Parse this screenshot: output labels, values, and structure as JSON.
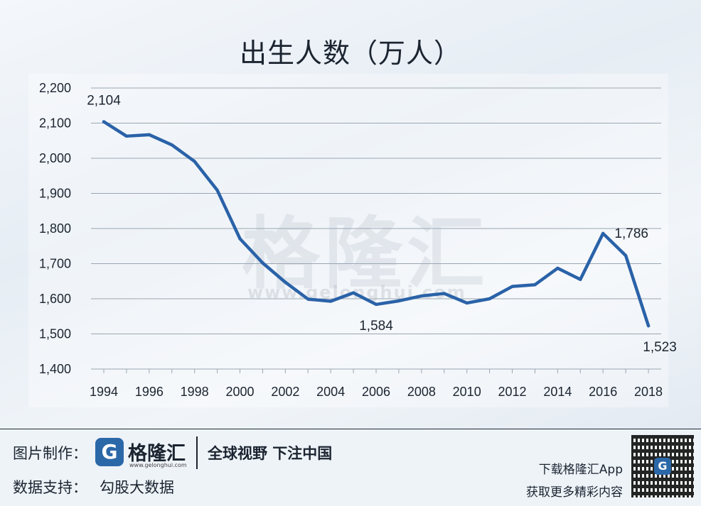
{
  "chart_data": {
    "type": "line",
    "title": "出生人数（万人）",
    "ylim": [
      1400,
      2200
    ],
    "yticks": [
      "1,400",
      "1,500",
      "1,600",
      "1,700",
      "1,800",
      "1,900",
      "2,000",
      "2,100",
      "2,200"
    ],
    "xticks": [
      "1994",
      "1996",
      "1998",
      "2000",
      "2002",
      "2004",
      "2006",
      "2008",
      "2010",
      "2012",
      "2014",
      "2016",
      "2018"
    ],
    "x": [
      1994,
      1995,
      1996,
      1997,
      1998,
      1999,
      2000,
      2001,
      2002,
      2003,
      2004,
      2005,
      2006,
      2007,
      2008,
      2009,
      2010,
      2011,
      2012,
      2013,
      2014,
      2015,
      2016,
      2017,
      2018
    ],
    "series": [
      {
        "values": [
          2104,
          2063,
          2067,
          2038,
          1991,
          1909,
          1771,
          1702,
          1647,
          1599,
          1593,
          1617,
          1584,
          1594,
          1608,
          1615,
          1588,
          1600,
          1635,
          1640,
          1687,
          1655,
          1786,
          1723,
          1523
        ],
        "color": "#2a62a8"
      }
    ],
    "annotations": [
      {
        "x": 1994,
        "y": 2104,
        "text": "2,104"
      },
      {
        "x": 2006,
        "y": 1584,
        "text": "1,584"
      },
      {
        "x": 2016,
        "y": 1786,
        "text": "1,786"
      },
      {
        "x": 2018,
        "y": 1523,
        "text": "1,523"
      }
    ],
    "grid": true
  },
  "watermark": {
    "text": "格隆汇",
    "url": "www.gelonghui.com"
  },
  "footer": {
    "made_by_label": "图片制作：",
    "brand_name": "格隆汇",
    "brand_url": "www.gelonghui.com",
    "slogan": "全球视野 下注中国",
    "data_support_label": "数据支持：",
    "data_support_value": "勾股大数据",
    "download_line1": "下载格隆汇App",
    "download_line2": "获取更多精彩内容",
    "qr_icon": "qr-code-icon"
  }
}
